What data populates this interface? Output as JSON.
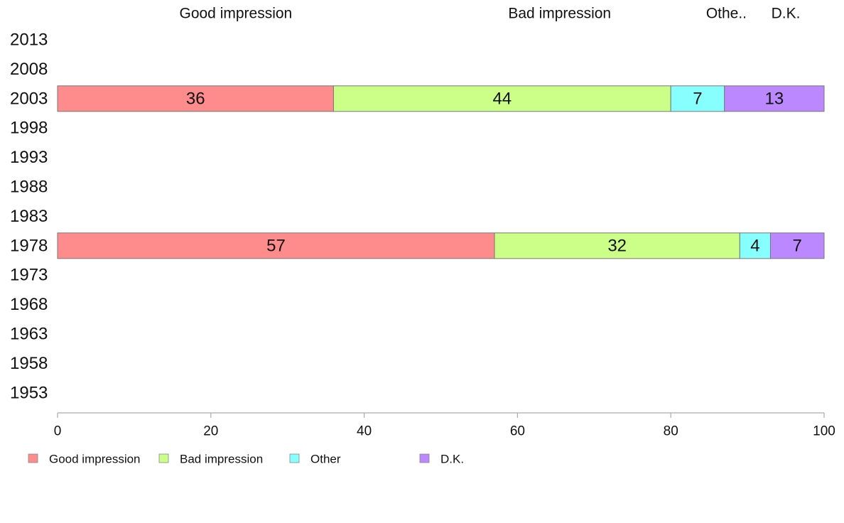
{
  "chart_data": {
    "type": "bar",
    "orientation": "horizontal",
    "stacked": true,
    "title": "",
    "xlabel": "",
    "ylabel": "",
    "xlim": [
      0,
      100
    ],
    "x_ticks": [
      0,
      20,
      40,
      60,
      80,
      100
    ],
    "categories": [
      "2013",
      "2008",
      "2003",
      "1998",
      "1993",
      "1988",
      "1983",
      "1978",
      "1973",
      "1968",
      "1963",
      "1958",
      "1953"
    ],
    "column_headers": [
      "Good impression",
      "Bad impression",
      "Othe..",
      "D.K."
    ],
    "series": [
      {
        "name": "Good impression",
        "color": "#ff8c8c",
        "values": [
          null,
          null,
          36,
          null,
          null,
          null,
          null,
          57,
          null,
          null,
          null,
          null,
          null
        ]
      },
      {
        "name": "Bad impression",
        "color": "#ccff88",
        "values": [
          null,
          null,
          44,
          null,
          null,
          null,
          null,
          32,
          null,
          null,
          null,
          null,
          null
        ]
      },
      {
        "name": "Other",
        "color": "#88ffff",
        "values": [
          null,
          null,
          7,
          null,
          null,
          null,
          null,
          4,
          null,
          null,
          null,
          null,
          null
        ]
      },
      {
        "name": "D.K.",
        "color": "#bb88ff",
        "values": [
          null,
          null,
          13,
          null,
          null,
          null,
          null,
          7,
          null,
          null,
          null,
          null,
          null
        ]
      }
    ],
    "legend_position": "bottom-left",
    "grid": false
  }
}
